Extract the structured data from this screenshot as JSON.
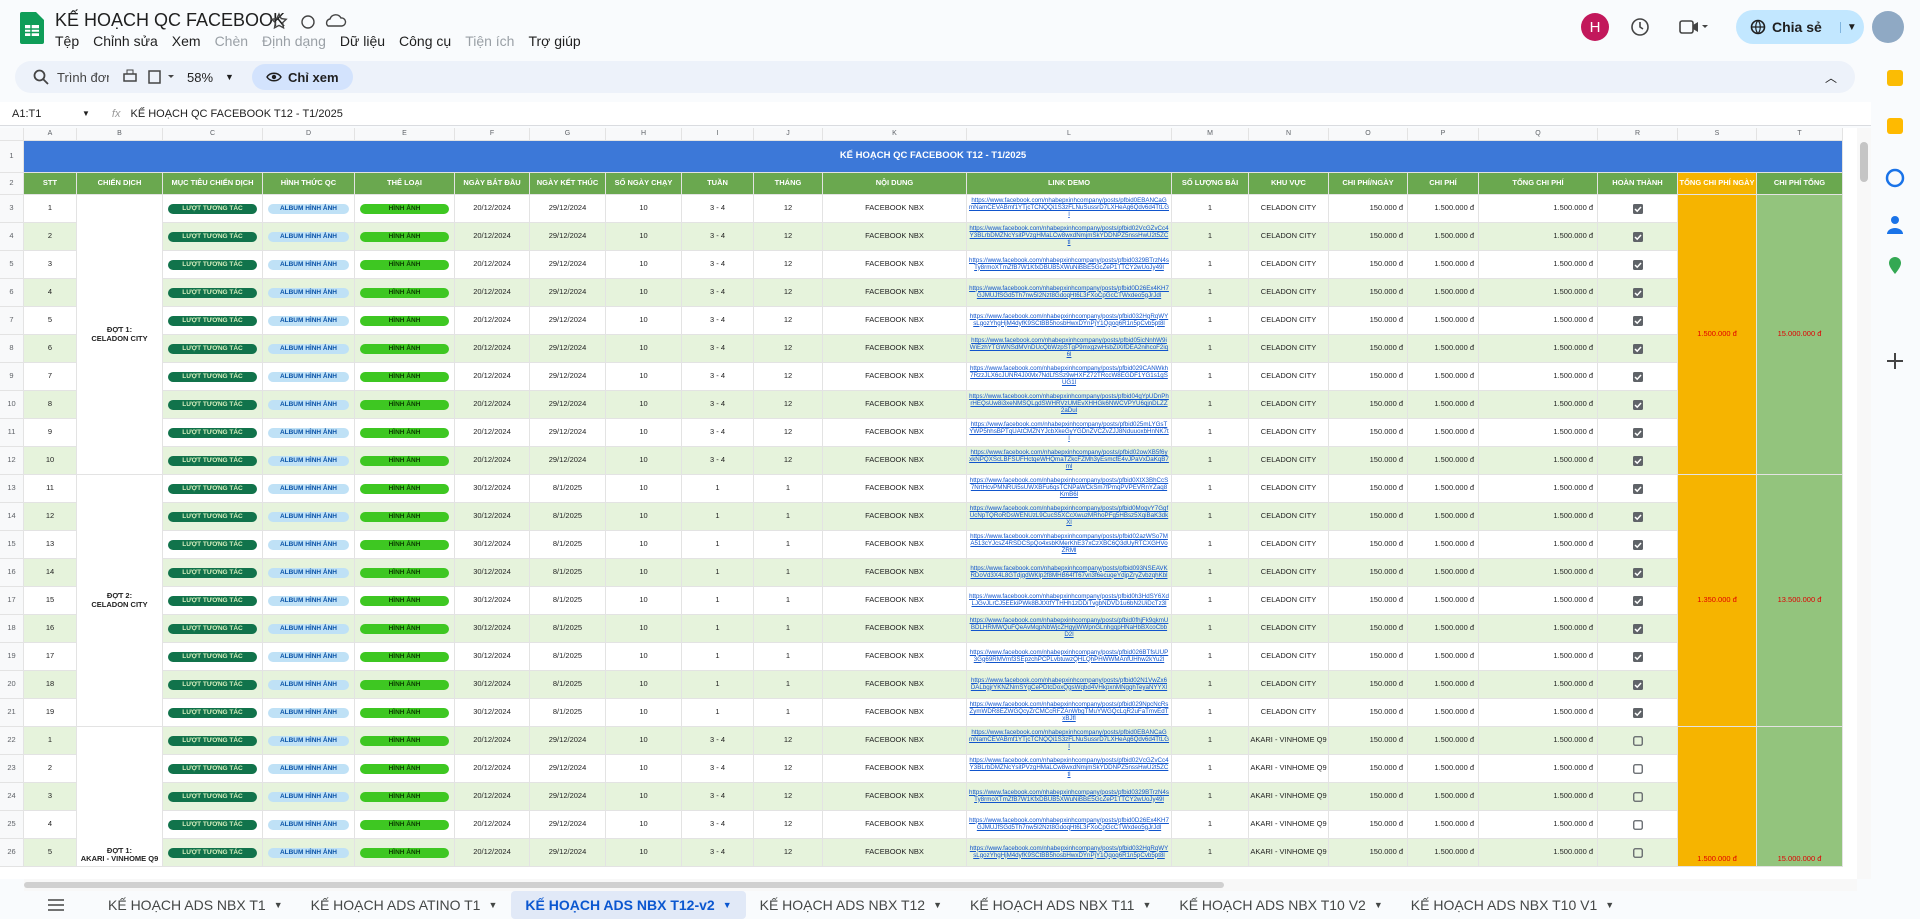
{
  "app": {
    "title": "KẾ HOẠCH QC FACEBOOK",
    "menu": [
      {
        "label": "Tệp",
        "enabled": true
      },
      {
        "label": "Chỉnh sửa",
        "enabled": true
      },
      {
        "label": "Xem",
        "enabled": true
      },
      {
        "label": "Chèn",
        "enabled": false
      },
      {
        "label": "Định dạng",
        "enabled": false
      },
      {
        "label": "Dữ liệu",
        "enabled": true
      },
      {
        "label": "Công cụ",
        "enabled": true
      },
      {
        "label": "Tiện ích",
        "enabled": false
      },
      {
        "label": "Trợ giúp",
        "enabled": true
      }
    ],
    "avatar": "H",
    "share": "Chia sẻ"
  },
  "toolbar": {
    "search": "Trình đơn",
    "zoom": "58%",
    "view_only": "Chỉ xem"
  },
  "formula_bar": {
    "cell": "A1:T1",
    "content": "KẾ HOẠCH QC FACEBOOK T12 - T1/2025"
  },
  "sheet": {
    "columns": [
      "A",
      "B",
      "C",
      "D",
      "E",
      "F",
      "G",
      "H",
      "I",
      "J",
      "K",
      "L",
      "M",
      "N",
      "O",
      "P",
      "Q",
      "R",
      "S",
      "T"
    ],
    "title_row": 1,
    "header_row": 2,
    "title": "KẾ HOẠCH QC FACEBOOK T12 - T1/2025",
    "headers": [
      "STT",
      "CHIẾN DỊCH",
      "MỤC TIÊU CHIẾN DỊCH",
      "HÌNH THỨC QC",
      "THỂ LOẠI",
      "NGÀY BẮT ĐẦU",
      "NGÀY KẾT THÚC",
      "SỐ NGÀY CHẠY",
      "TUẦN",
      "THÁNG",
      "NỘI DUNG",
      "LINK DEMO",
      "SỐ LƯỢNG BÀI",
      "KHU VỰC",
      "CHI PHÍ/NGÀY",
      "CHI PHÍ",
      "TỔNG CHI PHÍ",
      "HOÀN THÀNH",
      "TỔNG CHI PHÍ NGÀY",
      "CHI PHÍ TỔNG"
    ],
    "groups": [
      {
        "label": "ĐỢT 1:\nCELADON CITY",
        "daily": "1.500.000 đ",
        "total": "15.000.000 đ",
        "rows": [
          {
            "n": 3,
            "stt": 1,
            "goal": "LƯỢT TƯƠNG TÁC",
            "form": "ALBUM HÌNH ẢNH",
            "type": "HÌNH ẢNH",
            "start": "20/12/2024",
            "end": "29/12/2024",
            "days": 10,
            "week": "3 - 4",
            "month": 12,
            "content": "FACEBOOK NBX",
            "link": "https://www.facebook.com/nhabepxinhcompany/posts/pfbid0EBANCaGmNamCEVABmf1YTjcTCNQQi1S3zFLNuSussrD7LXHeAg6Qdv6d4TtLGl",
            "qty": 1,
            "area": "CELADON CITY",
            "perday": "150.000 đ",
            "cost": "1.500.000 đ",
            "total": "1.500.000 đ",
            "done": true
          },
          {
            "n": 4,
            "stt": 2,
            "goal": "LƯỢT TƯƠNG TÁC",
            "form": "ALBUM HÌNH ẢNH",
            "type": "HÌNH ẢNH",
            "start": "20/12/2024",
            "end": "29/12/2024",
            "days": 10,
            "week": "3 - 4",
            "month": 12,
            "content": "FACEBOOK NBX",
            "link": "https://www.facebook.com/nhabepxinhcompany/posts/pfbid02VcGZvCc4Y3BLrbDMZNcYsitPVzgHMaLCw8wxdNmjmSkYDDNPZ5nssHwU2t5ZCtl",
            "qty": 1,
            "area": "CELADON CITY",
            "perday": "150.000 đ",
            "cost": "1.500.000 đ",
            "total": "1.500.000 đ",
            "done": true
          },
          {
            "n": 5,
            "stt": 3,
            "goal": "LƯỢT TƯƠNG TÁC",
            "form": "ALBUM HÌNH ẢNH",
            "type": "HÌNH ẢNH",
            "start": "20/12/2024",
            "end": "29/12/2024",
            "days": 10,
            "week": "3 - 4",
            "month": 12,
            "content": "FACEBOOK NBX",
            "link": "https://www.facebook.com/nhabepxinhcompany/posts/pfbid0329BTrzN4sTy8rmoXTmZfB7W1KfxDBUB5XWuNiBBE5GcZeP1TTCY2wUoJy49l",
            "qty": 1,
            "area": "CELADON CITY",
            "perday": "150.000 đ",
            "cost": "1.500.000 đ",
            "total": "1.500.000 đ",
            "done": true
          },
          {
            "n": 6,
            "stt": 4,
            "goal": "LƯỢT TƯƠNG TÁC",
            "form": "ALBUM HÌNH ẢNH",
            "type": "HÌNH ẢNH",
            "start": "20/12/2024",
            "end": "29/12/2024",
            "days": 10,
            "week": "3 - 4",
            "month": 12,
            "content": "FACEBOOK NBX",
            "link": "https://www.facebook.com/nhabepxinhcompany/posts/pfbid0D26Ex4KH7GJMUJfSGd5Th7nw5I2Nzt8GdoqHt6L3FXoCpGcCTWxdeo5gJrJdl",
            "qty": 1,
            "area": "CELADON CITY",
            "perday": "150.000 đ",
            "cost": "1.500.000 đ",
            "total": "1.500.000 đ",
            "done": true
          },
          {
            "n": 7,
            "stt": 5,
            "goal": "LƯỢT TƯƠNG TÁC",
            "form": "ALBUM HÌNH ẢNH",
            "type": "HÌNH ẢNH",
            "start": "20/12/2024",
            "end": "29/12/2024",
            "days": 10,
            "week": "3 - 4",
            "month": 12,
            "content": "FACEBOOK NBX",
            "link": "https://www.facebook.com/nhabepxinhcompany/posts/pfbid032HgRqWYsLgozYhgHjM4dyfK9SCtBB5hosbHwxDYnPjY1Qqoq6R1n5pCvb5pt8l",
            "qty": 1,
            "area": "CELADON CITY",
            "perday": "150.000 đ",
            "cost": "1.500.000 đ",
            "total": "1.500.000 đ",
            "done": true
          },
          {
            "n": 8,
            "stt": 6,
            "goal": "LƯỢT TƯƠNG TÁC",
            "form": "ALBUM HÌNH ẢNH",
            "type": "HÌNH ẢNH",
            "start": "20/12/2024",
            "end": "29/12/2024",
            "days": 10,
            "week": "3 - 4",
            "month": 12,
            "content": "FACEBOOK NBX",
            "link": "https://www.facebook.com/nhabepxinhcompany/posts/pfbid05icNnhW9iWiEzhYTGWNSdMVnDUcQbWzpSTgP9mxgzwHsbZiXifDEA2nihcoF2iq6l",
            "qty": 1,
            "area": "CELADON CITY",
            "perday": "150.000 đ",
            "cost": "1.500.000 đ",
            "total": "1.500.000 đ",
            "done": true
          },
          {
            "n": 9,
            "stt": 7,
            "goal": "LƯỢT TƯƠNG TÁC",
            "form": "ALBUM HÌNH ẢNH",
            "type": "HÌNH ẢNH",
            "start": "20/12/2024",
            "end": "29/12/2024",
            "days": 10,
            "week": "3 - 4",
            "month": 12,
            "content": "FACEBOOK NBX",
            "link": "https://www.facebook.com/nhabepxinhcompany/posts/pfbid029CANWkh7RzzJLX6cJUNR4JiXMx7NdLfSSz9wHXFZ72TRccW8EGDF1YG1s1gSUG1l",
            "qty": 1,
            "area": "CELADON CITY",
            "perday": "150.000 đ",
            "cost": "1.500.000 đ",
            "total": "1.500.000 đ",
            "done": true
          },
          {
            "n": 10,
            "stt": 8,
            "goal": "LƯỢT TƯƠNG TÁC",
            "form": "ALBUM HÌNH ẢNH",
            "type": "HÌNH ẢNH",
            "start": "20/12/2024",
            "end": "29/12/2024",
            "days": 10,
            "week": "3 - 4",
            "month": 12,
            "content": "FACEBOOK NBX",
            "link": "https://www.facebook.com/nhabepxinhcompany/posts/pfbid04gYpUDnPhrHEQsUw8i3xeNMSQLgdSWHRVzUMEvXHHGk6NWCVPYU6qjnDLZZ2aDul",
            "qty": 1,
            "area": "CELADON CITY",
            "perday": "150.000 đ",
            "cost": "1.500.000 đ",
            "total": "1.500.000 đ",
            "done": true
          },
          {
            "n": 11,
            "stt": 9,
            "goal": "LƯỢT TƯƠNG TÁC",
            "form": "ALBUM HÌNH ẢNH",
            "type": "HÌNH ẢNH",
            "start": "20/12/2024",
            "end": "29/12/2024",
            "days": 10,
            "week": "3 - 4",
            "month": 12,
            "content": "FACEBOOK NBX",
            "link": "https://www.facebook.com/nhabepxinhcompany/posts/pfbid025mLYGsTYWP5hhsBPTqUAtCMZNYJcbXkeGyYGDnZVCZvZJJ8NduuoxbHnNK7tl",
            "qty": 1,
            "area": "CELADON CITY",
            "perday": "150.000 đ",
            "cost": "1.500.000 đ",
            "total": "1.500.000 đ",
            "done": true
          },
          {
            "n": 12,
            "stt": 10,
            "goal": "LƯỢT TƯƠNG TÁC",
            "form": "ALBUM HÌNH ẢNH",
            "type": "HÌNH ẢNH",
            "start": "20/12/2024",
            "end": "29/12/2024",
            "days": 10,
            "week": "3 - 4",
            "month": 12,
            "content": "FACEBOOK NBX",
            "link": "https://www.facebook.com/nhabepxinhcompany/posts/pfbid02owXB5f6yxkNPQXScLBFSUFHctqeWHQmaTZkcFZMh3yEsmcfE4vJPaVxDaKqB7ml",
            "qty": 1,
            "area": "CELADON CITY",
            "perday": "150.000 đ",
            "cost": "1.500.000 đ",
            "total": "1.500.000 đ",
            "done": true
          }
        ]
      },
      {
        "label": "ĐỢT 2:\nCELADON CITY",
        "daily": "1.350.000 đ",
        "total": "13.500.000 đ",
        "rows": [
          {
            "n": 13,
            "stt": 11,
            "goal": "LƯỢT TƯƠNG TÁC",
            "form": "ALBUM HÌNH ẢNH",
            "type": "HÌNH ẢNH",
            "start": "30/12/2024",
            "end": "8/1/2025",
            "days": 10,
            "week": 1,
            "month": 1,
            "content": "FACEBOOK NBX",
            "link": "https://www.facebook.com/nhabepxinhcompany/posts/pfbid0XtX3BhCcS7NrtHcvPMNRUi5sUWXBFu6qsTCNPaWCkSm7fPmqPVPEVRnYZaq8KmB6l",
            "qty": 1,
            "area": "CELADON CITY",
            "perday": "150.000 đ",
            "cost": "1.500.000 đ",
            "total": "1.500.000 đ",
            "done": true
          },
          {
            "n": 14,
            "stt": 12,
            "goal": "LƯỢT TƯƠNG TÁC",
            "form": "ALBUM HÌNH ẢNH",
            "type": "HÌNH ẢNH",
            "start": "30/12/2024",
            "end": "8/1/2025",
            "days": 10,
            "week": 1,
            "month": 1,
            "content": "FACEBOOK NBX",
            "link": "https://www.facebook.com/nhabepxinhcompany/posts/pfbid0MogvY7GgfUcNpTQRoRDsWENUzL9CucS5XCcXwuzMRhoPFg5HBsz5XqiBaK3dkXl",
            "qty": 1,
            "area": "CELADON CITY",
            "perday": "150.000 đ",
            "cost": "1.500.000 đ",
            "total": "1.500.000 đ",
            "done": true
          },
          {
            "n": 15,
            "stt": 13,
            "goal": "LƯỢT TƯƠNG TÁC",
            "form": "ALBUM HÌNH ẢNH",
            "type": "HÌNH ẢNH",
            "start": "30/12/2024",
            "end": "8/1/2025",
            "days": 10,
            "week": 1,
            "month": 1,
            "content": "FACEBOOK NBX",
            "link": "https://www.facebook.com/nhabepxinhcompany/posts/pfbid02azWSo7MA513cYJcsZ4RSDCSpQo4xsbKMerKhE37xCzXBC6Q3dUyRTCXGHVoZRMl",
            "qty": 1,
            "area": "CELADON CITY",
            "perday": "150.000 đ",
            "cost": "1.500.000 đ",
            "total": "1.500.000 đ",
            "done": true
          },
          {
            "n": 16,
            "stt": 14,
            "goal": "LƯỢT TƯƠNG TÁC",
            "form": "ALBUM HÌNH ẢNH",
            "type": "HÌNH ẢNH",
            "start": "30/12/2024",
            "end": "8/1/2025",
            "days": 10,
            "week": 1,
            "month": 1,
            "content": "FACEBOOK NBX",
            "link": "https://www.facebook.com/nhabepxinhcompany/posts/pfbid093NSEAVKRDoVd3X4L8GTdjgdWKlp2f8MHB64fT67vn3f6ecuqeYdjpZryZvbzqhKbl",
            "qty": 1,
            "area": "CELADON CITY",
            "perday": "150.000 đ",
            "cost": "1.500.000 đ",
            "total": "1.500.000 đ",
            "done": true
          },
          {
            "n": 17,
            "stt": 15,
            "goal": "LƯỢT TƯƠNG TÁC",
            "form": "ALBUM HÌNH ẢNH",
            "type": "HÌNH ẢNH",
            "start": "30/12/2024",
            "end": "8/1/2025",
            "days": 10,
            "week": 1,
            "month": 1,
            "content": "FACEBOOK NBX",
            "link": "https://www.facebook.com/nhabepxinhcompany/posts/pfbid0h3HdSY6XdLJGvJLrCJ5EEkiPWk8BJtXtfYTHHh1zDDiTvgbNDVD1u6bN2UiDcTz3l",
            "qty": 1,
            "area": "CELADON CITY",
            "perday": "150.000 đ",
            "cost": "1.500.000 đ",
            "total": "1.500.000 đ",
            "done": true
          },
          {
            "n": 18,
            "stt": 16,
            "goal": "LƯỢT TƯƠNG TÁC",
            "form": "ALBUM HÌNH ẢNH",
            "type": "HÌNH ẢNH",
            "start": "30/12/2024",
            "end": "8/1/2025",
            "days": 10,
            "week": 1,
            "month": 1,
            "content": "FACEBOOK NBX",
            "link": "https://www.facebook.com/nhabepxinhcompany/posts/pfbid0fhjFk9qkmUBDLHRMWQuFQeAvMqpNbWjcZHgyjWWpnGLnhgqpHNaHbBXcoCbbD2l",
            "qty": 1,
            "area": "CELADON CITY",
            "perday": "150.000 đ",
            "cost": "1.500.000 đ",
            "total": "1.500.000 đ",
            "done": true
          },
          {
            "n": 19,
            "stt": 17,
            "goal": "LƯỢT TƯƠNG TÁC",
            "form": "ALBUM HÌNH ẢNH",
            "type": "HÌNH ẢNH",
            "start": "30/12/2024",
            "end": "8/1/2025",
            "days": 10,
            "week": 1,
            "month": 1,
            "content": "FACEBOOK NBX",
            "link": "https://www.facebook.com/nhabepxinhcompany/posts/pfbid026BTfsUUP3Gg69RMVmf3SEpzchPCPLvbtuwzQHLQhPHWWMAnfUHhw2kYu2l",
            "qty": 1,
            "area": "CELADON CITY",
            "perday": "150.000 đ",
            "cost": "1.500.000 đ",
            "total": "1.500.000 đ",
            "done": true
          },
          {
            "n": 20,
            "stt": 18,
            "goal": "LƯỢT TƯƠNG TÁC",
            "form": "ALBUM HÌNH ẢNH",
            "type": "HÌNH ẢNH",
            "start": "30/12/2024",
            "end": "8/1/2025",
            "days": 10,
            "week": 1,
            "month": 1,
            "content": "FACEBOOK NBX",
            "link": "https://www.facebook.com/nhabepxinhcompany/posts/pfbid02N1VwZx6DALbgjrYKNZNmSYgCePDtcDoxQgsWqbd4VHkpxnMNgqhTeyaNYYXl",
            "qty": 1,
            "area": "CELADON CITY",
            "perday": "150.000 đ",
            "cost": "1.500.000 đ",
            "total": "1.500.000 đ",
            "done": true
          },
          {
            "n": 21,
            "stt": 19,
            "goal": "LƯỢT TƯƠNG TÁC",
            "form": "ALBUM HÌNH ẢNH",
            "type": "HÌNH ẢNH",
            "start": "30/12/2024",
            "end": "8/1/2025",
            "days": 10,
            "week": 1,
            "month": 1,
            "content": "FACEBOOK NBX",
            "link": "https://www.facebook.com/nhabepxinhcompany/posts/pfbid029NpcNcRsZymWDR8EZWGQcyZrCMCcRFZAnWbgTMuYWGQcLqR2uFaTmvEdTxBJfl",
            "qty": 1,
            "area": "CELADON CITY",
            "perday": "150.000 đ",
            "cost": "1.500.000 đ",
            "total": "1.500.000 đ",
            "done": true
          }
        ]
      },
      {
        "label": "ĐỢT 1:\nAKARI - VINHOME Q9",
        "daily": "1.500.000 đ",
        "total": "15.000.000 đ",
        "rows": [
          {
            "n": 22,
            "stt": 1,
            "goal": "LƯỢT TƯƠNG TÁC",
            "form": "ALBUM HÌNH ẢNH",
            "type": "HÌNH ẢNH",
            "start": "20/12/2024",
            "end": "29/12/2024",
            "days": 10,
            "week": "3 - 4",
            "month": 12,
            "content": "FACEBOOK NBX",
            "link": "https://www.facebook.com/nhabepxinhcompany/posts/pfbid0EBANCaGmNamCEVABmf1YTjcTCNQQi1S3zFLNuSussrD7LXHeAg6Qdv6d4TtLGl",
            "qty": 1,
            "area": "AKARI - VINHOME Q9",
            "perday": "150.000 đ",
            "cost": "1.500.000 đ",
            "total": "1.500.000 đ",
            "done": false
          },
          {
            "n": 23,
            "stt": 2,
            "goal": "LƯỢT TƯƠNG TÁC",
            "form": "ALBUM HÌNH ẢNH",
            "type": "HÌNH ẢNH",
            "start": "20/12/2024",
            "end": "29/12/2024",
            "days": 10,
            "week": "3 - 4",
            "month": 12,
            "content": "FACEBOOK NBX",
            "link": "https://www.facebook.com/nhabepxinhcompany/posts/pfbid02VcGZvCc4Y3BLrbDMZNcYsitPVzgHMaLCw8wxdNmjmSkYDDNPZ5nssHwU2t5ZCtl",
            "qty": 1,
            "area": "AKARI - VINHOME Q9",
            "perday": "150.000 đ",
            "cost": "1.500.000 đ",
            "total": "1.500.000 đ",
            "done": false
          },
          {
            "n": 24,
            "stt": 3,
            "goal": "LƯỢT TƯƠNG TÁC",
            "form": "ALBUM HÌNH ẢNH",
            "type": "HÌNH ẢNH",
            "start": "20/12/2024",
            "end": "29/12/2024",
            "days": 10,
            "week": "3 - 4",
            "month": 12,
            "content": "FACEBOOK NBX",
            "link": "https://www.facebook.com/nhabepxinhcompany/posts/pfbid0329BTrzN4sTy8rmoXTmZfB7W1KfxDBUB5XWuNiBBE5GcZeP1TTCY2wUoJy49l",
            "qty": 1,
            "area": "AKARI - VINHOME Q9",
            "perday": "150.000 đ",
            "cost": "1.500.000 đ",
            "total": "1.500.000 đ",
            "done": false
          },
          {
            "n": 25,
            "stt": 4,
            "goal": "LƯỢT TƯƠNG TÁC",
            "form": "ALBUM HÌNH ẢNH",
            "type": "HÌNH ẢNH",
            "start": "20/12/2024",
            "end": "29/12/2024",
            "days": 10,
            "week": "3 - 4",
            "month": 12,
            "content": "FACEBOOK NBX",
            "link": "https://www.facebook.com/nhabepxinhcompany/posts/pfbid0D26Ex4KH7GJMUJfSGd5Th7nw5I2Nzt8GdoqHt6L3FXoCpGcCTWxdeo5gJrJdl",
            "qty": 1,
            "area": "AKARI - VINHOME Q9",
            "perday": "150.000 đ",
            "cost": "1.500.000 đ",
            "total": "1.500.000 đ",
            "done": false
          },
          {
            "n": 26,
            "stt": 5,
            "goal": "LƯỢT TƯƠNG TÁC",
            "form": "ALBUM HÌNH ẢNH",
            "type": "HÌNH ẢNH",
            "start": "20/12/2024",
            "end": "29/12/2024",
            "days": 10,
            "week": "3 - 4",
            "month": 12,
            "content": "FACEBOOK NBX",
            "link": "https://www.facebook.com/nhabepxinhcompany/posts/pfbid032HgRqWYsLgozYhgHjM4dyfK9SCtBB5hosbHwxDYnPjY1Qqoq6R1n5pCvb5pt8l",
            "qty": 1,
            "area": "AKARI - VINHOME Q9",
            "perday": "150.000 đ",
            "cost": "1.500.000 đ",
            "total": "1.500.000 đ",
            "done": false
          }
        ]
      }
    ]
  },
  "tabs": {
    "items": [
      "KẾ HOẠCH ADS NBX T1",
      "KẾ HOẠCH ADS ATINO T1",
      "KẾ HOẠCH ADS NBX T12-v2",
      "KẾ HOẠCH ADS NBX T12",
      "KẾ HOẠCH ADS NBX T11",
      "KẾ HOẠCH ADS NBX T10 V2",
      "KẾ HOẠCH ADS NBX T10 V1"
    ],
    "active": 2
  }
}
